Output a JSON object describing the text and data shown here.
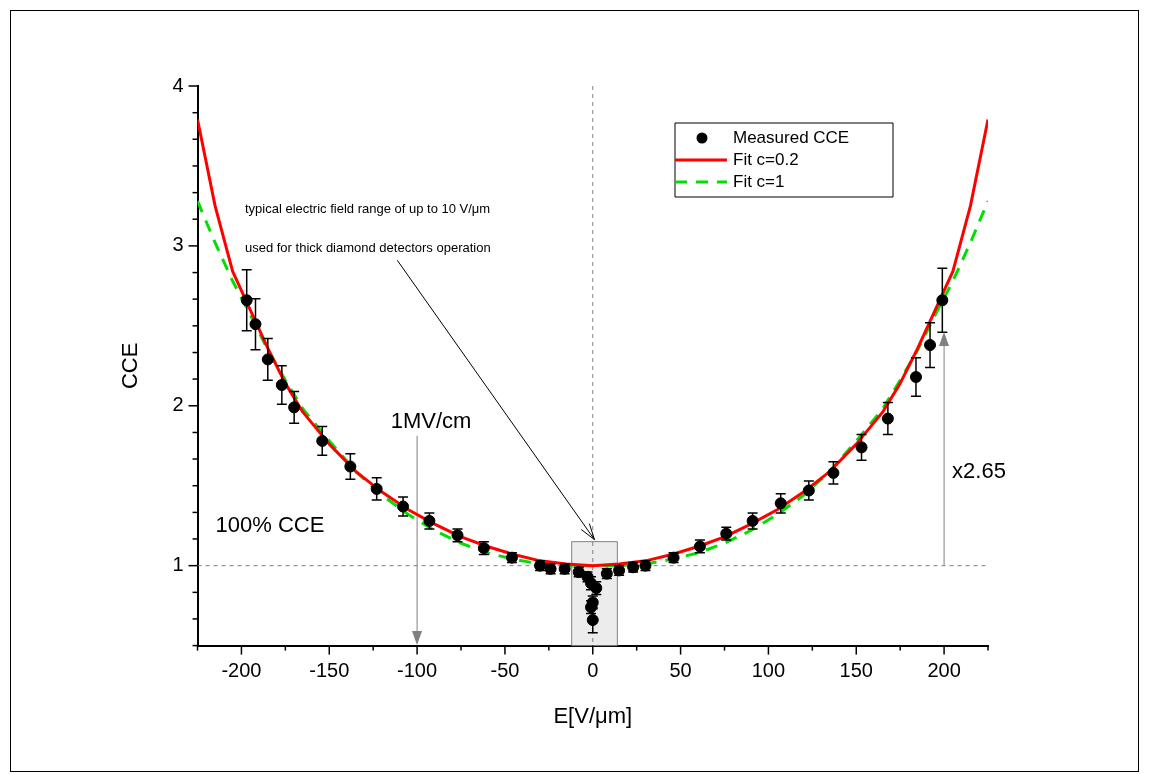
{
  "chart_data": {
    "type": "scatter",
    "xlabel": "E[V/μm]",
    "ylabel": "CCE",
    "xlim": [
      -225,
      225
    ],
    "ylim": [
      0.5,
      4
    ],
    "xticks": [
      {
        "value": -225,
        "label": null
      },
      -200,
      {
        "value": -175,
        "label": null
      },
      -150,
      {
        "value": -125,
        "label": null
      },
      -100,
      {
        "value": -75,
        "label": null
      },
      -50,
      {
        "value": -25,
        "label": null
      },
      0,
      {
        "value": 25,
        "label": null
      },
      50,
      {
        "value": 75,
        "label": null
      },
      100,
      {
        "value": 125,
        "label": null
      },
      150,
      {
        "value": 175,
        "label": null
      },
      200,
      {
        "value": 225,
        "label": null
      }
    ],
    "yticks": [
      {
        "value": 0.5,
        "label": null
      },
      {
        "value": 0.667,
        "label": null
      },
      {
        "value": 0.833,
        "label": null
      },
      1,
      {
        "value": 1.167,
        "label": null
      },
      {
        "value": 1.333,
        "label": null
      },
      {
        "value": 1.5,
        "label": null
      },
      {
        "value": 1.667,
        "label": null
      },
      {
        "value": 1.833,
        "label": null
      },
      2,
      {
        "value": 2.167,
        "label": null
      },
      {
        "value": 2.333,
        "label": null
      },
      {
        "value": 2.5,
        "label": null
      },
      {
        "value": 2.667,
        "label": null
      },
      {
        "value": 2.833,
        "label": null
      },
      3,
      {
        "value": 3.167,
        "label": null
      },
      {
        "value": 3.333,
        "label": null
      },
      {
        "value": 3.5,
        "label": null
      },
      {
        "value": 3.667,
        "label": null
      },
      {
        "value": 3.833,
        "label": null
      },
      4
    ],
    "grid": false,
    "legend": "top right",
    "series": [
      {
        "name": "Measured CCE",
        "type": "scatter",
        "color": "#000000",
        "marker": "circle",
        "x": [
          -197,
          -192,
          -185,
          -177,
          -170,
          -154,
          -138,
          -123,
          -108,
          -93,
          -77,
          -62,
          -46,
          -30,
          -24,
          -16,
          -8,
          -3,
          -1,
          2,
          0,
          -1,
          0,
          8,
          15,
          23,
          30,
          46,
          61,
          76,
          91,
          107,
          123,
          137,
          153,
          168,
          184,
          192,
          199
        ],
        "values": [
          2.66,
          2.51,
          2.29,
          2.13,
          1.99,
          1.78,
          1.62,
          1.48,
          1.37,
          1.28,
          1.19,
          1.11,
          1.05,
          1.0,
          0.98,
          0.98,
          0.96,
          0.93,
          0.89,
          0.86,
          0.77,
          0.74,
          0.66,
          0.95,
          0.97,
          0.99,
          1.0,
          1.05,
          1.12,
          1.2,
          1.28,
          1.39,
          1.47,
          1.58,
          1.74,
          1.92,
          2.18,
          2.38,
          2.66
        ],
        "errors": [
          0.19,
          0.16,
          0.13,
          0.12,
          0.1,
          0.09,
          0.08,
          0.07,
          0.06,
          0.05,
          0.04,
          0.04,
          0.03,
          0.03,
          0.03,
          0.03,
          0.03,
          0.03,
          0.04,
          0.04,
          0.04,
          0.04,
          0.08,
          0.03,
          0.03,
          0.03,
          0.03,
          0.03,
          0.04,
          0.04,
          0.05,
          0.06,
          0.06,
          0.07,
          0.08,
          0.1,
          0.12,
          0.14,
          0.2
        ]
      },
      {
        "name": "Fit c=0.2",
        "type": "line",
        "color": "#ff0000",
        "line_style": "solid",
        "marker": "none",
        "x": [
          -225,
          -215,
          -205,
          -195,
          -185,
          -175,
          -165,
          -150,
          -135,
          -120,
          -105,
          -90,
          -75,
          -60,
          -45,
          -30,
          -15,
          0,
          15,
          30,
          45,
          60,
          75,
          90,
          105,
          120,
          135,
          150,
          165,
          175,
          185,
          195,
          205,
          215,
          225
        ],
        "values": [
          3.79,
          3.25,
          2.84,
          2.6,
          2.36,
          2.14,
          1.96,
          1.76,
          1.59,
          1.46,
          1.35,
          1.26,
          1.18,
          1.12,
          1.07,
          1.03,
          1.01,
          1.0,
          1.01,
          1.03,
          1.07,
          1.12,
          1.18,
          1.26,
          1.35,
          1.46,
          1.59,
          1.76,
          1.96,
          2.14,
          2.36,
          2.6,
          2.84,
          3.25,
          3.79
        ]
      },
      {
        "name": "Fit c=1",
        "type": "line",
        "color": "#00e000",
        "line_style": "dashed",
        "marker": "none",
        "x": [
          -225,
          -215,
          -205,
          -195,
          -185,
          -175,
          -165,
          -150,
          -135,
          -120,
          -105,
          -90,
          -75,
          -60,
          -45,
          -30,
          -15,
          0,
          15,
          30,
          45,
          60,
          75,
          90,
          105,
          120,
          135,
          150,
          165,
          175,
          185,
          195,
          205,
          215,
          225
        ],
        "values": [
          3.28,
          3.02,
          2.78,
          2.57,
          2.35,
          2.16,
          1.98,
          1.78,
          1.59,
          1.44,
          1.32,
          1.22,
          1.14,
          1.08,
          1.04,
          1.01,
          1.0,
          1.0,
          1.0,
          1.01,
          1.04,
          1.08,
          1.14,
          1.22,
          1.32,
          1.44,
          1.59,
          1.78,
          1.98,
          2.16,
          2.35,
          2.57,
          2.78,
          3.02,
          3.28
        ]
      }
    ],
    "ref_lines": [
      {
        "axis": "y",
        "value": 1,
        "label": "100% CCE",
        "line_style": "dashed",
        "color": "#808080"
      },
      {
        "axis": "x",
        "value": 0,
        "line_style": "dashed",
        "color": "#808080"
      },
      {
        "axis": "x",
        "value": -100,
        "label": "1MV/cm",
        "line_style": "solid",
        "color": "#808080"
      },
      {
        "axis": "x",
        "value": 200,
        "label": "x2.65",
        "line_style": "solid",
        "color": "#808080"
      }
    ],
    "bands": [
      {
        "axis": "x",
        "from": -12,
        "to": 14,
        "color": "#808080"
      }
    ],
    "annotations": [
      "typical electric field range of up to 10 V/μm",
      "used for thick diamond detectors operation"
    ]
  }
}
